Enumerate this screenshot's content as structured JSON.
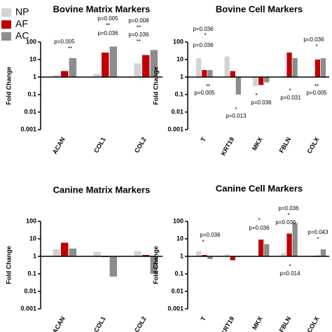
{
  "chart_data": [
    {
      "type": "bar",
      "title": "Bovine Matrix Markers",
      "ylabel": "Fold Change",
      "log_scale": true,
      "categories": [
        "ACAN",
        "COL1",
        "COL2"
      ],
      "series": [
        {
          "name": "NP",
          "color": "#d3d3d3",
          "values": [
            1.3,
            1.5,
            6
          ]
        },
        {
          "name": "AF",
          "color": "#c00000",
          "values": [
            2.2,
            25,
            18
          ]
        },
        {
          "name": "AC",
          "color": "#8c8c8c",
          "values": [
            12,
            55,
            35
          ]
        }
      ],
      "ylim": [
        0.001,
        100
      ],
      "yticks": [
        0.001,
        0.01,
        0.1,
        1,
        10,
        100
      ],
      "annotations": [
        "p=0.005",
        "**",
        "p=0.005",
        "**",
        "p=0.036",
        "p=0.008",
        "**",
        "p=0.036",
        "**"
      ]
    },
    {
      "type": "bar",
      "title": "Bovine Cell Markers",
      "ylabel": "Fold Change",
      "log_scale": true,
      "categories": [
        "T",
        "KRT19",
        "MKX",
        "FBLN",
        "COLX"
      ],
      "series": [
        {
          "name": "NP",
          "color": "#d3d3d3",
          "values": [
            12,
            15,
            0.3,
            1.2,
            1
          ]
        },
        {
          "name": "AF",
          "color": "#c00000",
          "values": [
            2.5,
            2.2,
            0.35,
            25,
            10
          ]
        },
        {
          "name": "AC",
          "color": "#8c8c8c",
          "values": [
            2.5,
            0.1,
            0.5,
            12,
            12
          ]
        }
      ],
      "ylim": [
        0.001,
        100
      ],
      "yticks": [
        0.001,
        0.01,
        0.1,
        1,
        10,
        100
      ],
      "annotations": [
        "p=0.036",
        "*",
        "p=0.036",
        "**",
        "p=0.005",
        "*",
        "p=0.013",
        "*",
        "p=0.036",
        "*",
        "p=0.031",
        "p=0.036",
        "*",
        "**",
        "p=0.005"
      ]
    },
    {
      "type": "bar",
      "title": "Canine Matrix Markers",
      "ylabel": "Fold Change",
      "log_scale": true,
      "categories": [
        "ACAN",
        "COL1",
        "COL2"
      ],
      "series": [
        {
          "name": "NP",
          "color": "#d3d3d3",
          "values": [
            2.5,
            1.8,
            2
          ]
        },
        {
          "name": "AF",
          "color": "#c00000",
          "values": [
            6,
            1,
            1.2
          ]
        },
        {
          "name": "AC",
          "color": "#8c8c8c",
          "values": [
            2.8,
            0.07,
            0.1
          ]
        }
      ],
      "ylim": [
        0.001,
        100
      ],
      "yticks": [
        0.001,
        0.01,
        0.1,
        1,
        10,
        100
      ],
      "annotations": []
    },
    {
      "type": "bar",
      "title": "Canine Cell Markers",
      "ylabel": "Fold Change",
      "log_scale": true,
      "categories": [
        "T",
        "KRT19",
        "MKX",
        "FBLN",
        "COLX"
      ],
      "series": [
        {
          "name": "NP",
          "color": "#d3d3d3",
          "values": [
            2,
            1.3,
            1,
            1.5,
            1
          ]
        },
        {
          "name": "AF",
          "color": "#c00000",
          "values": [
            1.2,
            0.6,
            9,
            20,
            1.1
          ]
        },
        {
          "name": "AC",
          "color": "#8c8c8c",
          "values": [
            0.7,
            1,
            5,
            80,
            2.5
          ]
        }
      ],
      "ylim": [
        0.001,
        100
      ],
      "yticks": [
        0.001,
        0.01,
        0.1,
        1,
        10,
        100
      ],
      "annotations": [
        "p=0.036",
        "*",
        "p=0.036",
        "*",
        "p=0.036",
        "p=0.036",
        "*",
        "p=0.043",
        "*",
        "*",
        "p=0.014"
      ]
    }
  ]
}
